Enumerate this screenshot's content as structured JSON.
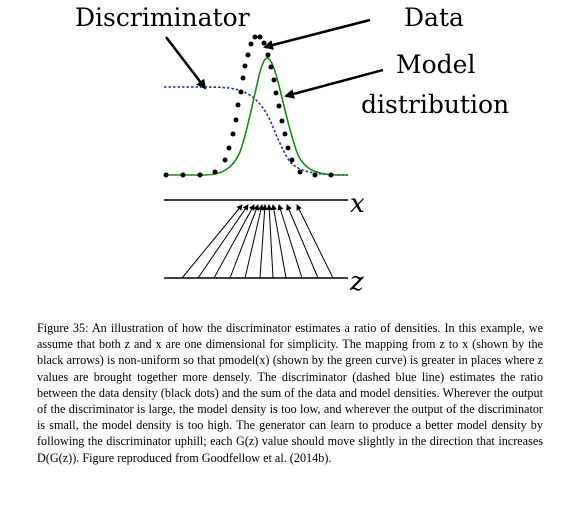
{
  "figure": {
    "labels": {
      "discriminator": "Discriminator",
      "data": "Data",
      "model_line1": "Model",
      "model_line2": "distribution",
      "x_axis": "x",
      "z_axis": "z"
    },
    "colors": {
      "data_dots": "#000000",
      "model_curve": "#1a8a1a",
      "discriminator_curve": "#1f2fa0",
      "arrows": "#000000"
    }
  },
  "caption": {
    "text": "Figure 35: An illustration of how the discriminator estimates a ratio of densities. In this example, we assume that both z and x are one dimensional for simplicity. The mapping from z to x (shown by the black arrows) is non-uniform so that pmodel(x) (shown by the green curve) is greater in places where z values are brought together more densely. The discriminator (dashed blue line) estimates the ratio between the data density (black dots) and the sum of the data and model densities. Wherever the output of the discriminator is large, the model density is too low, and wherever the output of the discriminator is small, the model density is too high. The generator can learn to produce a better model density by following the discriminator uphill; each G(z) value should move slightly in the direction that increases D(G(z)). Figure reproduced from Goodfellow et al. (2014b)."
  }
}
